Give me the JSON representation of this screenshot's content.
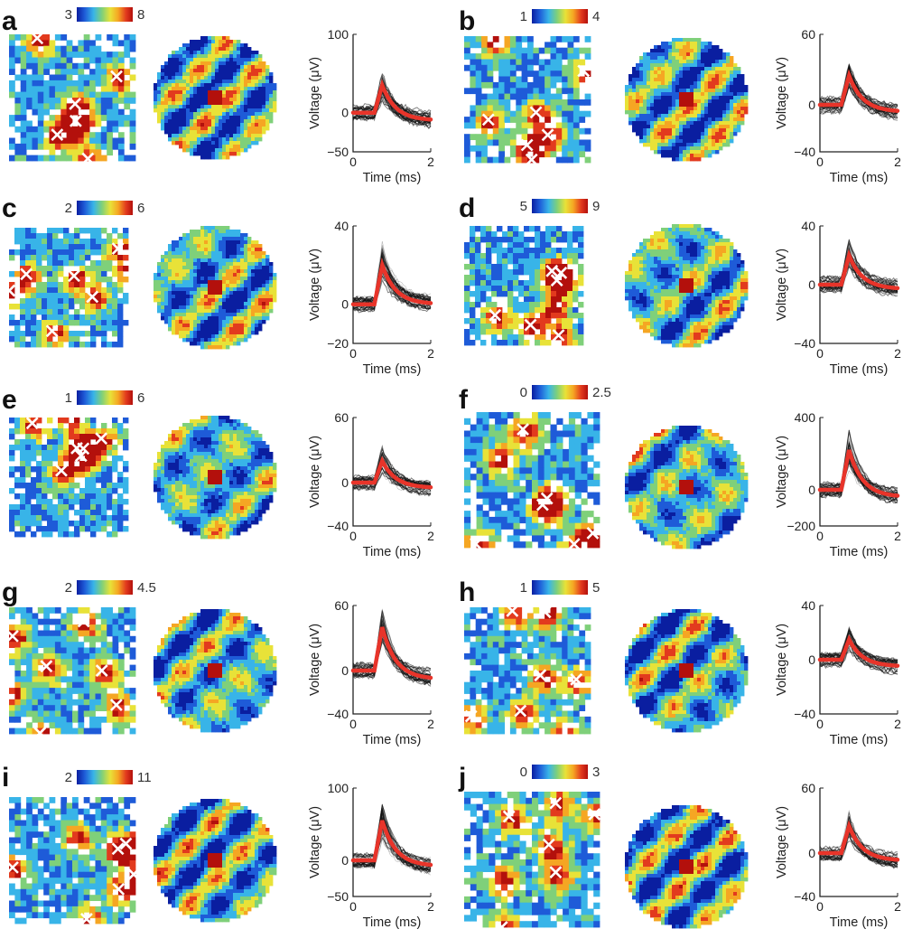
{
  "figure_colormap": [
    "#0a1ea0",
    "#1e5bd8",
    "#38b4e8",
    "#7fd07a",
    "#e8e238",
    "#f5a623",
    "#e23a1e",
    "#b3100c"
  ],
  "chart_data": [
    {
      "type": "heatmap",
      "panel": "a",
      "colorbar": {
        "min": "3",
        "max": "8"
      },
      "crosses": true,
      "waveform": {
        "type": "line",
        "xlabel": "Time (ms)",
        "ylabel": "Voltage (μV)",
        "xticks": [
          "0",
          "2"
        ],
        "yticks": [
          "100",
          "0",
          "−50"
        ],
        "xlim": [
          0,
          2
        ],
        "ylim": [
          -50,
          100
        ],
        "mean_peak": 35,
        "mean_trough": -10,
        "series": [
          {
            "name": "mean",
            "color": "#e8342a"
          }
        ]
      }
    },
    {
      "type": "heatmap",
      "panel": "b",
      "colorbar": {
        "min": "1",
        "max": "4"
      },
      "crosses": true,
      "waveform": {
        "type": "line",
        "xlabel": "Time (ms)",
        "ylabel": "Voltage (μV)",
        "xticks": [
          "0",
          "2"
        ],
        "yticks": [
          "60",
          "0",
          "−40"
        ],
        "xlim": [
          0,
          2
        ],
        "ylim": [
          -40,
          60
        ],
        "mean_peak": 25,
        "mean_trough": -6,
        "series": [
          {
            "name": "mean",
            "color": "#e8342a"
          }
        ]
      }
    },
    {
      "type": "heatmap",
      "panel": "c",
      "colorbar": {
        "min": "2",
        "max": "6"
      },
      "crosses": true,
      "waveform": {
        "type": "line",
        "xlabel": "Time (ms)",
        "ylabel": "Voltage (μV)",
        "xticks": [
          "0",
          "2"
        ],
        "yticks": [
          "40",
          "0",
          "−20"
        ],
        "xlim": [
          0,
          2
        ],
        "ylim": [
          -20,
          40
        ],
        "mean_peak": 20,
        "mean_trough": 0,
        "series": [
          {
            "name": "mean",
            "color": "#e8342a"
          }
        ]
      }
    },
    {
      "type": "heatmap",
      "panel": "d",
      "colorbar": {
        "min": "5",
        "max": "9"
      },
      "crosses": true,
      "waveform": {
        "type": "line",
        "xlabel": "Time (ms)",
        "ylabel": "Voltage (μV)",
        "xticks": [
          "0",
          "2"
        ],
        "yticks": [
          "40",
          "0",
          "−40"
        ],
        "xlim": [
          0,
          2
        ],
        "ylim": [
          -40,
          40
        ],
        "mean_peak": 20,
        "mean_trough": -3,
        "series": [
          {
            "name": "mean",
            "color": "#e8342a"
          }
        ]
      }
    },
    {
      "type": "heatmap",
      "panel": "e",
      "colorbar": {
        "min": "1",
        "max": "6"
      },
      "crosses": true,
      "waveform": {
        "type": "line",
        "xlabel": "Time (ms)",
        "ylabel": "Voltage (μV)",
        "xticks": [
          "0",
          "2"
        ],
        "yticks": [
          "60",
          "0",
          "−40"
        ],
        "xlim": [
          0,
          2
        ],
        "ylim": [
          -40,
          60
        ],
        "mean_peak": 20,
        "mean_trough": -5,
        "series": [
          {
            "name": "mean",
            "color": "#e8342a"
          }
        ]
      }
    },
    {
      "type": "heatmap",
      "panel": "f",
      "colorbar": {
        "min": "0",
        "max": "2.5"
      },
      "crosses": true,
      "waveform": {
        "type": "line",
        "xlabel": "Time (ms)",
        "ylabel": "Voltage (μV)",
        "xticks": [
          "0",
          "2"
        ],
        "yticks": [
          "400",
          "0",
          "−200"
        ],
        "xlim": [
          0,
          2
        ],
        "ylim": [
          -200,
          400
        ],
        "mean_peak": 220,
        "mean_trough": -40,
        "series": [
          {
            "name": "mean",
            "color": "#e8342a"
          }
        ]
      }
    },
    {
      "type": "heatmap",
      "panel": "g",
      "colorbar": {
        "min": "2",
        "max": "4.5"
      },
      "crosses": true,
      "waveform": {
        "type": "line",
        "xlabel": "Time (ms)",
        "ylabel": "Voltage (μV)",
        "xticks": [
          "0",
          "2"
        ],
        "yticks": [
          "60",
          "0",
          "−40"
        ],
        "xlim": [
          0,
          2
        ],
        "ylim": [
          -40,
          60
        ],
        "mean_peak": 40,
        "mean_trough": -8,
        "series": [
          {
            "name": "mean",
            "color": "#e8342a"
          }
        ]
      }
    },
    {
      "type": "heatmap",
      "panel": "h",
      "colorbar": {
        "min": "1",
        "max": "5"
      },
      "crosses": true,
      "waveform": {
        "type": "line",
        "xlabel": "Time (ms)",
        "ylabel": "Voltage (μV)",
        "xticks": [
          "0",
          "2"
        ],
        "yticks": [
          "40",
          "0",
          "−40"
        ],
        "xlim": [
          0,
          2
        ],
        "ylim": [
          -40,
          40
        ],
        "mean_peak": 15,
        "mean_trough": -5,
        "series": [
          {
            "name": "mean",
            "color": "#e8342a"
          }
        ]
      }
    },
    {
      "type": "heatmap",
      "panel": "i",
      "colorbar": {
        "min": "2",
        "max": "11"
      },
      "crosses": true,
      "waveform": {
        "type": "line",
        "xlabel": "Time (ms)",
        "ylabel": "Voltage (μV)",
        "xticks": [
          "0",
          "2"
        ],
        "yticks": [
          "100",
          "0",
          "−50"
        ],
        "xlim": [
          0,
          2
        ],
        "ylim": [
          -50,
          100
        ],
        "mean_peak": 55,
        "mean_trough": -8,
        "series": [
          {
            "name": "mean",
            "color": "#e8342a"
          }
        ]
      }
    },
    {
      "type": "heatmap",
      "panel": "j",
      "colorbar": {
        "min": "0",
        "max": "3"
      },
      "crosses": true,
      "waveform": {
        "type": "line",
        "xlabel": "Time (ms)",
        "ylabel": "Voltage (μV)",
        "xticks": [
          "0",
          "2"
        ],
        "yticks": [
          "60",
          "0",
          "−40"
        ],
        "xlim": [
          0,
          2
        ],
        "ylim": [
          -40,
          60
        ],
        "mean_peak": 25,
        "mean_trough": -7,
        "series": [
          {
            "name": "mean",
            "color": "#e8342a"
          }
        ]
      }
    }
  ]
}
